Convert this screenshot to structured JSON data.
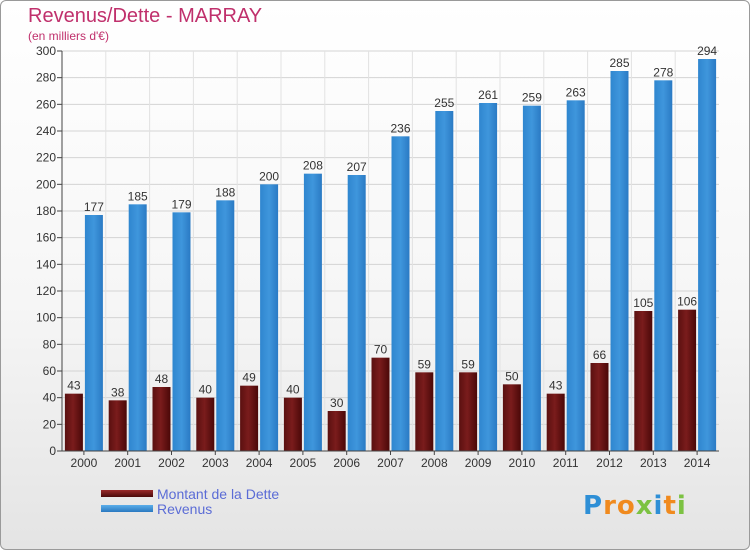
{
  "chart_data": {
    "type": "bar",
    "title": "Revenus/Dette - MARRAY",
    "subtitle": "(en milliers d'€)",
    "categories": [
      "2000",
      "2001",
      "2002",
      "2003",
      "2004",
      "2005",
      "2006",
      "2007",
      "2008",
      "2009",
      "2010",
      "2011",
      "2012",
      "2013",
      "2014"
    ],
    "series": [
      {
        "name": "Montant de la Dette",
        "color": "#7a1c1c",
        "values": [
          43,
          38,
          48,
          40,
          49,
          40,
          30,
          70,
          59,
          59,
          50,
          43,
          66,
          105,
          106
        ]
      },
      {
        "name": "Revenus",
        "color": "#3f96dc",
        "values": [
          177,
          185,
          179,
          188,
          200,
          208,
          207,
          236,
          255,
          261,
          259,
          263,
          285,
          278,
          294
        ]
      }
    ],
    "ylim": [
      0,
      300
    ],
    "ytick_step": 20,
    "grid": true,
    "legend_position": "bottom-left"
  },
  "logo": {
    "text": "Proxiti",
    "letters": [
      {
        "ch": "P",
        "color": "#2e8fd6"
      },
      {
        "ch": "r",
        "color": "#f08a1e"
      },
      {
        "ch": "o",
        "color": "#f08a1e"
      },
      {
        "ch": "x",
        "color": "#7cc242"
      },
      {
        "ch": "i",
        "color": "#2e8fd6"
      },
      {
        "ch": "t",
        "color": "#f08a1e"
      },
      {
        "ch": "i",
        "color": "#7cc242"
      }
    ]
  }
}
